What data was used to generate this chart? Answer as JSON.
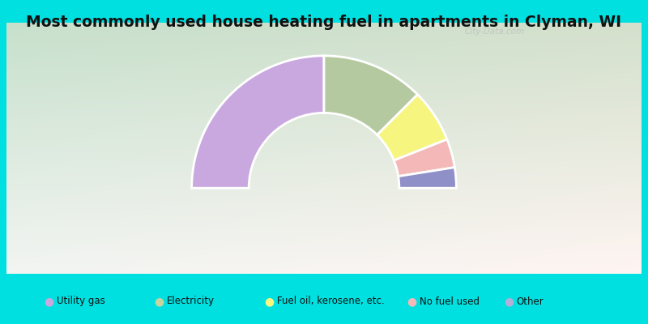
{
  "title": "Most commonly used house heating fuel in apartments in Clyman, WI",
  "categories": [
    "Utility gas",
    "Electricity",
    "Fuel oil, kerosene, etc.",
    "No fuel used",
    "Other"
  ],
  "values": [
    50,
    25,
    13,
    7,
    5
  ],
  "colors": [
    "#c9a8e0",
    "#b5c9a0",
    "#f5f580",
    "#f5b8b8",
    "#9090c8"
  ],
  "bg_color": "#00e0e0",
  "legend_dot_colors": [
    "#c9a8e0",
    "#c8d4a0",
    "#f8f880",
    "#f5b8b8",
    "#b0b0d8"
  ],
  "title_fontsize": 13.5,
  "legend_fontsize": 9,
  "watermark": "City-Data.com",
  "outer_r": 0.88,
  "inner_r": 0.5
}
